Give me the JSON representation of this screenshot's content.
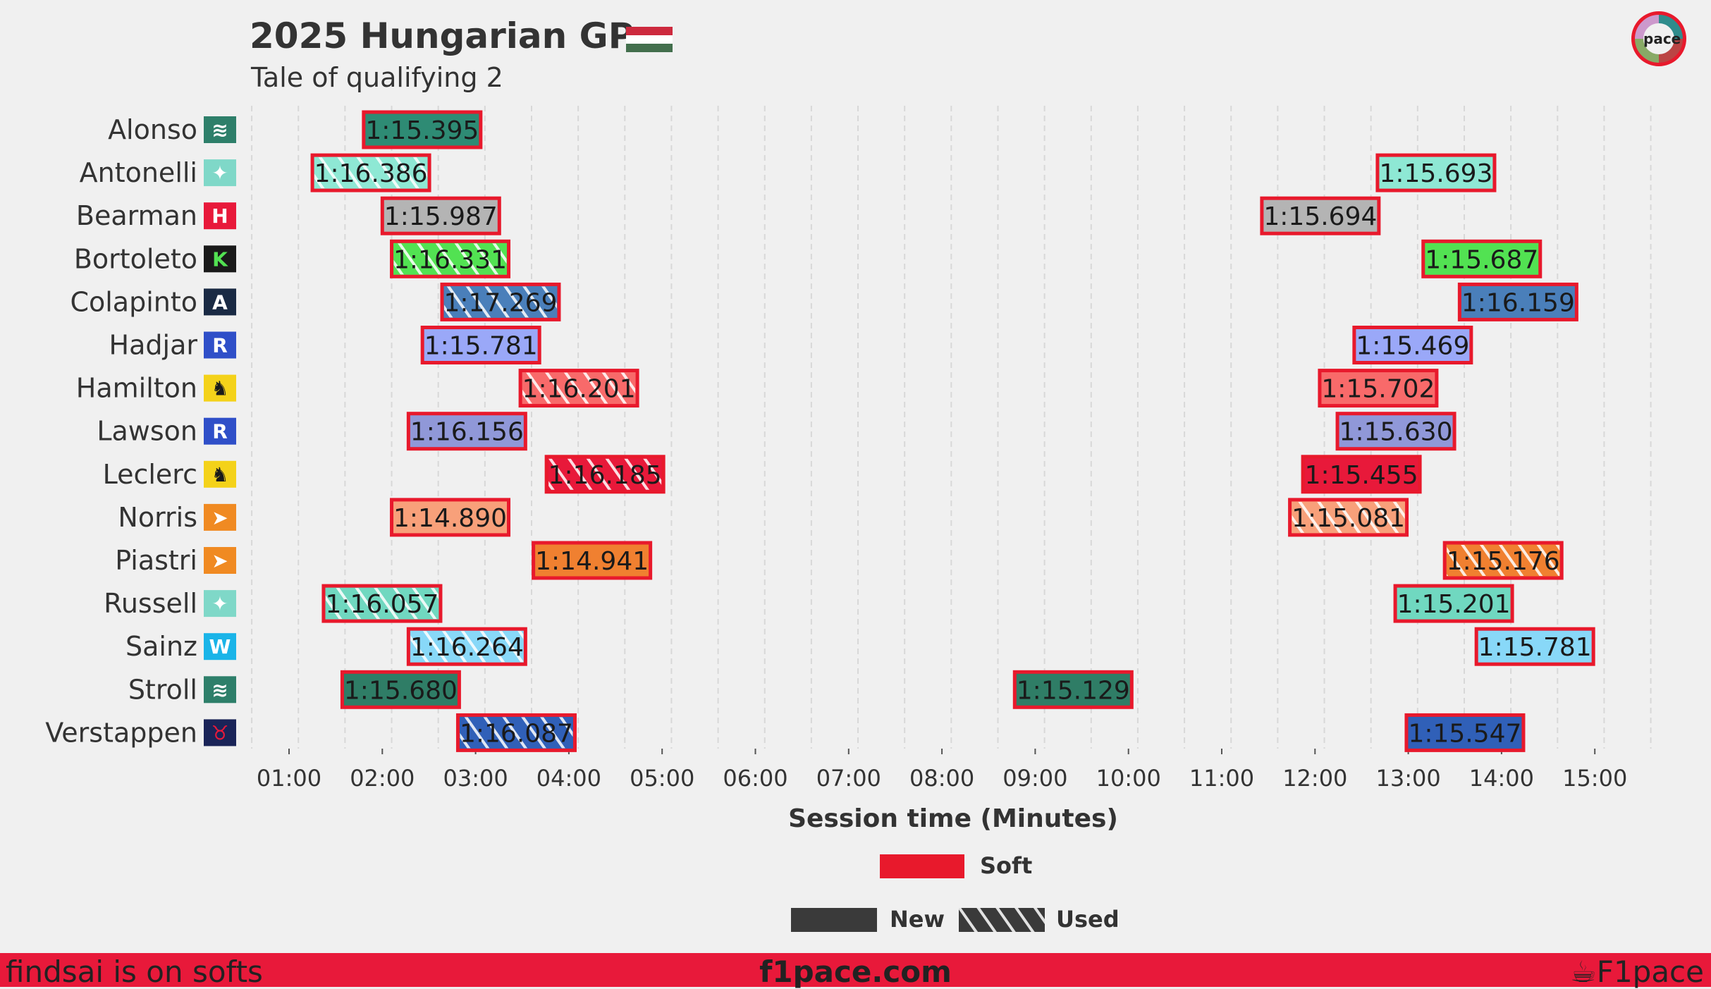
{
  "header": {
    "title": "2025 Hungarian GP",
    "subtitle": "Tale of qualifying 2",
    "flag_colors": [
      "#cd2a3e",
      "#ffffff",
      "#436f4d"
    ]
  },
  "footer": {
    "left_text": "findsai is on softs",
    "center_text": "f1pace.com",
    "right_text": "F1pace",
    "background": "#e8193a"
  },
  "logo": {
    "text": "pace"
  },
  "chart_data": {
    "type": "timeline",
    "xlabel": "Session time (Minutes)",
    "x_ticks": [
      "01:00",
      "02:00",
      "03:00",
      "04:00",
      "05:00",
      "06:00",
      "07:00",
      "08:00",
      "09:00",
      "10:00",
      "11:00",
      "12:00",
      "13:00",
      "14:00",
      "15:00"
    ],
    "xlim": [
      0.6,
      15.6
    ],
    "compound_color": "#e8192c",
    "legend": {
      "compound": "Soft",
      "new": "New",
      "used": "Used"
    },
    "drivers": [
      {
        "name": "Alonso",
        "icon": "aston-martin-icon",
        "team_color": "#2e8b74",
        "laps": [
          {
            "start": 1.8,
            "time": "1:15.395",
            "used": false
          }
        ]
      },
      {
        "name": "Antonelli",
        "icon": "mercedes-icon",
        "team_color": "#8ee8d4",
        "laps": [
          {
            "start": 1.25,
            "time": "1:16.386",
            "used": true
          },
          {
            "start": 12.67,
            "time": "1:15.693",
            "used": false
          }
        ]
      },
      {
        "name": "Bearman",
        "icon": "haas-icon",
        "team_color": "#b4b4b4",
        "laps": [
          {
            "start": 2.0,
            "time": "1:15.987",
            "used": false
          },
          {
            "start": 11.43,
            "time": "1:15.694",
            "used": false
          }
        ]
      },
      {
        "name": "Bortoleto",
        "icon": "sauber-icon",
        "team_color": "#52e252",
        "laps": [
          {
            "start": 2.1,
            "time": "1:16.331",
            "used": true
          },
          {
            "start": 13.16,
            "time": "1:15.687",
            "used": false
          }
        ]
      },
      {
        "name": "Colapinto",
        "icon": "alpine-icon",
        "team_color": "#4a7fba",
        "laps": [
          {
            "start": 2.64,
            "time": "1:17.269",
            "used": true
          },
          {
            "start": 13.55,
            "time": "1:16.159",
            "used": false
          }
        ]
      },
      {
        "name": "Hadjar",
        "icon": "racing-bulls-icon",
        "team_color": "#9aa8f8",
        "laps": [
          {
            "start": 2.43,
            "time": "1:15.781",
            "used": false
          },
          {
            "start": 12.42,
            "time": "1:15.469",
            "used": false
          }
        ]
      },
      {
        "name": "Hamilton",
        "icon": "ferrari-icon",
        "team_color": "#f86a6a",
        "laps": [
          {
            "start": 3.48,
            "time": "1:16.201",
            "used": true
          },
          {
            "start": 12.05,
            "time": "1:15.702",
            "used": false
          }
        ]
      },
      {
        "name": "Lawson",
        "icon": "racing-bulls-icon",
        "team_color": "#9098d8",
        "laps": [
          {
            "start": 2.28,
            "time": "1:16.156",
            "used": false
          },
          {
            "start": 12.24,
            "time": "1:15.630",
            "used": false
          }
        ]
      },
      {
        "name": "Leclerc",
        "icon": "ferrari-icon",
        "team_color": "#e8193a",
        "laps": [
          {
            "start": 3.76,
            "time": "1:16.185",
            "used": true
          },
          {
            "start": 11.87,
            "time": "1:15.455",
            "used": false
          }
        ]
      },
      {
        "name": "Norris",
        "icon": "mclaren-icon",
        "team_color": "#f8a07a",
        "laps": [
          {
            "start": 2.1,
            "time": "1:14.890",
            "used": false
          },
          {
            "start": 11.73,
            "time": "1:15.081",
            "used": true
          }
        ]
      },
      {
        "name": "Piastri",
        "icon": "mclaren-icon",
        "team_color": "#f08030",
        "laps": [
          {
            "start": 3.62,
            "time": "1:14.941",
            "used": false
          },
          {
            "start": 13.39,
            "time": "1:15.176",
            "used": true
          }
        ]
      },
      {
        "name": "Russell",
        "icon": "mercedes-icon",
        "team_color": "#70d8c0",
        "laps": [
          {
            "start": 1.37,
            "time": "1:16.057",
            "used": true
          },
          {
            "start": 12.86,
            "time": "1:15.201",
            "used": false
          }
        ]
      },
      {
        "name": "Sainz",
        "icon": "williams-icon",
        "team_color": "#88d8f8",
        "laps": [
          {
            "start": 2.28,
            "time": "1:16.264",
            "used": true
          },
          {
            "start": 13.73,
            "time": "1:15.781",
            "used": false
          }
        ]
      },
      {
        "name": "Stroll",
        "icon": "aston-martin-icon",
        "team_color": "#2f7d66",
        "laps": [
          {
            "start": 1.57,
            "time": "1:15.680",
            "used": false
          },
          {
            "start": 8.78,
            "time": "1:15.129",
            "used": false
          }
        ]
      },
      {
        "name": "Verstappen",
        "icon": "red-bull-icon",
        "team_color": "#3060b8",
        "laps": [
          {
            "start": 2.81,
            "time": "1:16.087",
            "used": true
          },
          {
            "start": 12.98,
            "time": "1:15.547",
            "used": false
          }
        ]
      }
    ]
  }
}
